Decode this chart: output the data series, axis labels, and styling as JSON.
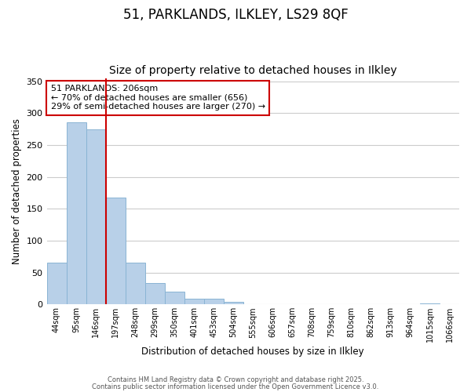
{
  "title": "51, PARKLANDS, ILKLEY, LS29 8QF",
  "subtitle": "Size of property relative to detached houses in Ilkley",
  "xlabel": "Distribution of detached houses by size in Ilkley",
  "ylabel": "Number of detached properties",
  "bar_labels": [
    "44sqm",
    "95sqm",
    "146sqm",
    "197sqm",
    "248sqm",
    "299sqm",
    "350sqm",
    "401sqm",
    "453sqm",
    "504sqm",
    "555sqm",
    "606sqm",
    "657sqm",
    "708sqm",
    "759sqm",
    "810sqm",
    "862sqm",
    "913sqm",
    "964sqm",
    "1015sqm",
    "1066sqm"
  ],
  "bar_values": [
    65,
    285,
    275,
    168,
    65,
    33,
    20,
    9,
    9,
    4,
    0,
    0,
    0,
    0,
    0,
    0,
    0,
    0,
    0,
    1,
    0
  ],
  "bar_color": "#b8d0e8",
  "bar_edge_color": "#8ab4d4",
  "vline_color": "#cc0000",
  "annotation_text": "51 PARKLANDS: 206sqm\n← 70% of detached houses are smaller (656)\n29% of semi-detached houses are larger (270) →",
  "annotation_box_color": "#ffffff",
  "annotation_box_edge_color": "#cc0000",
  "ylim": [
    0,
    355
  ],
  "yticks": [
    0,
    50,
    100,
    150,
    200,
    250,
    300,
    350
  ],
  "grid_color": "#cccccc",
  "bg_color": "#ffffff",
  "footer_line1": "Contains HM Land Registry data © Crown copyright and database right 2025.",
  "footer_line2": "Contains public sector information licensed under the Open Government Licence v3.0.",
  "title_fontsize": 12,
  "subtitle_fontsize": 10,
  "annotation_fontsize": 8,
  "footer_fontsize": 6
}
